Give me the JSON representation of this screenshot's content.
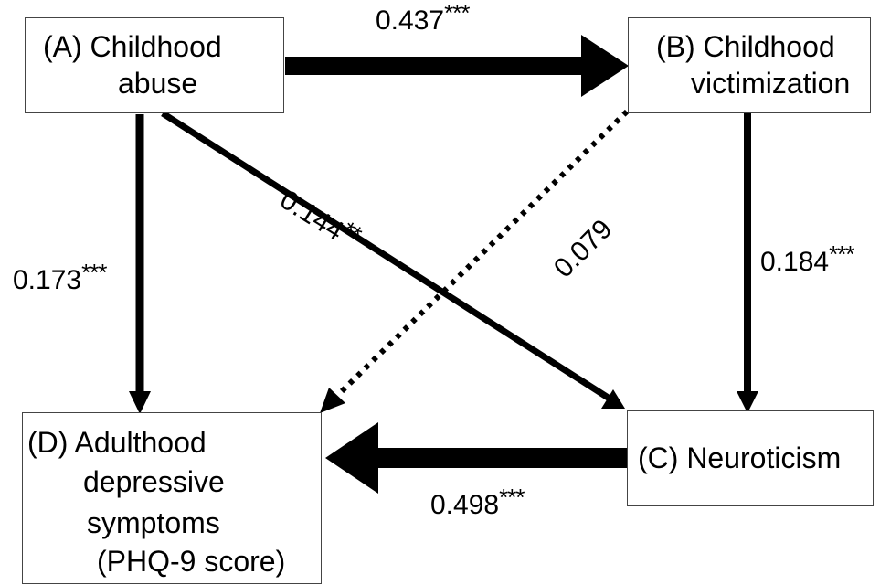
{
  "nodes": {
    "A": {
      "line1": "(A) Childhood",
      "line2": "abuse"
    },
    "B": {
      "line1": "(B) Childhood",
      "line2": "victimization"
    },
    "C": {
      "line1": "(C) Neuroticism"
    },
    "D": {
      "line1": "(D) Adulthood",
      "line2": "depressive",
      "line3": "symptoms",
      "line4": "(PHQ-9 score)"
    }
  },
  "paths": {
    "A_B": {
      "value": "0.437",
      "sig": "***"
    },
    "A_D": {
      "value": "0.173",
      "sig": "***"
    },
    "A_C": {
      "value": "0.144",
      "sig": "**"
    },
    "B_D": {
      "value": "0.079",
      "sig": ""
    },
    "B_C": {
      "value": "0.184",
      "sig": "***"
    },
    "C_D": {
      "value": "0.498",
      "sig": "***"
    }
  }
}
